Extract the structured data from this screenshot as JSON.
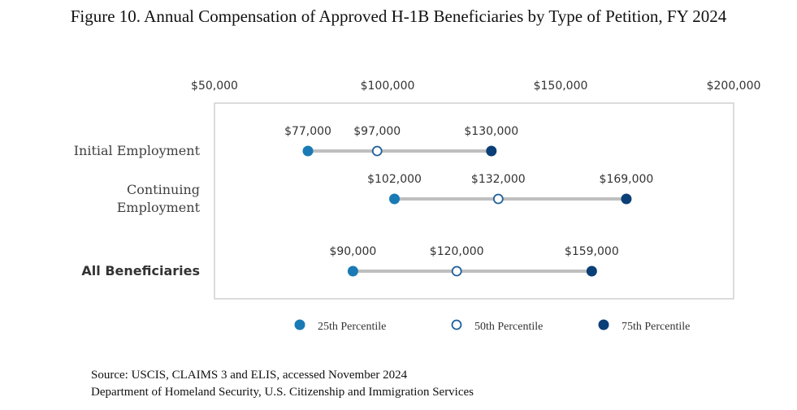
{
  "title": "Figure 10. Annual Compensation of Approved H-1B Beneficiaries by Type of Petition, FY 2024",
  "source_lines": [
    "Source: USCIS, CLAIMS 3 and ELIS, accessed November 2024",
    "Department of Homeland Security, U.S. Citizenship and Immigration Services"
  ],
  "colors": {
    "p25": "#1a7ab5",
    "p50_stroke": "#1f5f9a",
    "p75": "#0b3f77",
    "range_line": "#bfbfbf",
    "frame": "#d0d0d0"
  },
  "chart_data": {
    "type": "scatter",
    "title": "Figure 10. Annual Compensation of Approved H-1B Beneficiaries by Type of Petition, FY 2024",
    "xlim": [
      50000,
      200000
    ],
    "x_ticks": [
      50000,
      100000,
      150000,
      200000
    ],
    "x_tick_labels": [
      "$50,000",
      "$100,000",
      "$150,000",
      "$200,000"
    ],
    "x_axis_position": "top",
    "grid": false,
    "legend_position": "bottom",
    "categories": [
      {
        "label": [
          "Initial Employment"
        ],
        "bold": false
      },
      {
        "label": [
          "Continuing",
          "Employment"
        ],
        "bold": false
      },
      {
        "label": [
          "All Beneficiaries"
        ],
        "bold": true
      }
    ],
    "series": [
      {
        "name": "25th Percentile",
        "values": [
          77000,
          102000,
          90000
        ],
        "labels": [
          "$77,000",
          "$102,000",
          "$90,000"
        ]
      },
      {
        "name": "50th Percentile",
        "values": [
          97000,
          132000,
          120000
        ],
        "labels": [
          "$97,000",
          "$132,000",
          "$120,000"
        ]
      },
      {
        "name": "75th Percentile",
        "values": [
          130000,
          169000,
          159000
        ],
        "labels": [
          "$130,000",
          "$169,000",
          "$159,000"
        ]
      }
    ]
  }
}
